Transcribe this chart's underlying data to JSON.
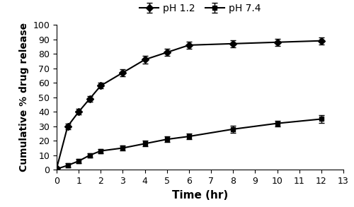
{
  "ph12_x": [
    0,
    0.5,
    1,
    1.5,
    2,
    3,
    4,
    5,
    6,
    8,
    10,
    12
  ],
  "ph12_y": [
    1,
    30,
    40,
    49,
    58,
    67,
    76,
    81,
    86,
    87,
    88,
    89
  ],
  "ph12_yerr": [
    0.5,
    2.0,
    2.0,
    2.0,
    2.0,
    2.5,
    2.5,
    2.5,
    2.5,
    2.5,
    2.5,
    2.5
  ],
  "ph74_x": [
    0,
    0.5,
    1,
    1.5,
    2,
    3,
    4,
    5,
    6,
    8,
    10,
    12
  ],
  "ph74_y": [
    0.5,
    3,
    6,
    10,
    13,
    15,
    18,
    21,
    23,
    28,
    32,
    35
  ],
  "ph74_yerr": [
    0.5,
    1.5,
    1.5,
    1.5,
    1.5,
    1.5,
    2.0,
    2.0,
    2.0,
    2.5,
    2.0,
    2.5
  ],
  "color": "#000000",
  "xlabel": "Time (hr)",
  "ylabel": "Cumulative % drug release",
  "xlim": [
    0,
    13
  ],
  "ylim": [
    0,
    100
  ],
  "xticks": [
    0,
    1,
    2,
    3,
    4,
    5,
    6,
    7,
    8,
    9,
    10,
    11,
    12,
    13
  ],
  "yticks": [
    0,
    10,
    20,
    30,
    40,
    50,
    60,
    70,
    80,
    90,
    100
  ],
  "legend_ph12": "pH 1.2",
  "legend_ph74": "pH 7.4",
  "marker_ph12": "D",
  "marker_ph74": "s",
  "linewidth": 1.5,
  "markersize": 5,
  "capsize": 3,
  "elinewidth": 1.0,
  "xlabel_fontsize": 11,
  "ylabel_fontsize": 10,
  "legend_fontsize": 10,
  "tick_fontsize": 9,
  "background_color": "#ffffff"
}
